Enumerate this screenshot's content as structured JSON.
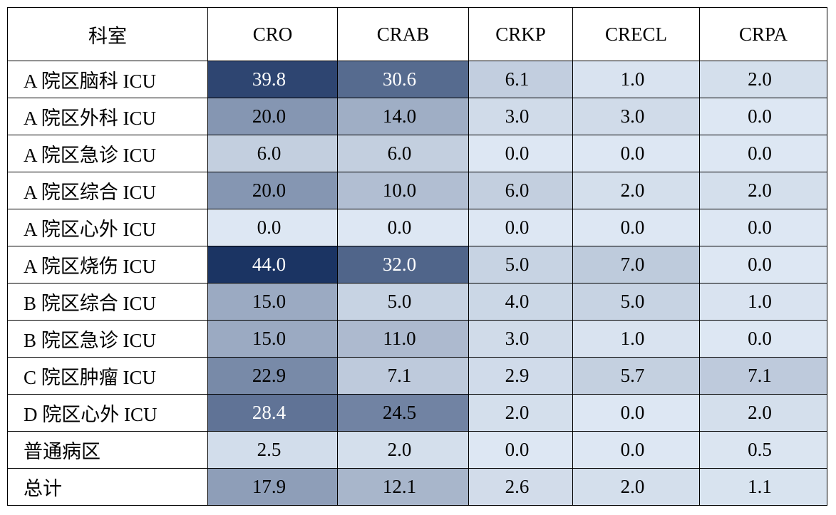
{
  "chart_data": {
    "type": "heatmap",
    "corner_label": "科室",
    "columns": [
      "CRO",
      "CRAB",
      "CRKP",
      "CRECL",
      "CRPA"
    ],
    "rows": [
      "A 院区脑科 ICU",
      "A 院区外科 ICU",
      "A 院区急诊 ICU",
      "A 院区综合 ICU",
      "A 院区心外 ICU",
      "A 院区烧伤 ICU",
      "B 院区综合 ICU",
      "B 院区急诊 ICU",
      "C 院区肿瘤 ICU",
      "D 院区心外 ICU",
      "普通病区",
      "总计"
    ],
    "values": [
      [
        39.8,
        30.6,
        6.1,
        1.0,
        2.0
      ],
      [
        20.0,
        14.0,
        3.0,
        3.0,
        0.0
      ],
      [
        6.0,
        6.0,
        0.0,
        0.0,
        0.0
      ],
      [
        20.0,
        10.0,
        6.0,
        2.0,
        2.0
      ],
      [
        0.0,
        0.0,
        0.0,
        0.0,
        0.0
      ],
      [
        44.0,
        32.0,
        5.0,
        7.0,
        0.0
      ],
      [
        15.0,
        5.0,
        4.0,
        5.0,
        1.0
      ],
      [
        15.0,
        11.0,
        3.0,
        1.0,
        0.0
      ],
      [
        22.9,
        7.1,
        2.9,
        5.7,
        7.1
      ],
      [
        28.4,
        24.5,
        2.0,
        0.0,
        2.0
      ],
      [
        2.5,
        2.0,
        0.0,
        0.0,
        0.5
      ],
      [
        17.9,
        12.1,
        2.6,
        2.0,
        1.1
      ]
    ],
    "color_scale": {
      "min": 0,
      "max": 44,
      "low_color": "#dde7f3",
      "high_color": "#1b3463",
      "label_color_dark_bg": "#ffffff",
      "label_color_light_bg": "#000000"
    }
  }
}
